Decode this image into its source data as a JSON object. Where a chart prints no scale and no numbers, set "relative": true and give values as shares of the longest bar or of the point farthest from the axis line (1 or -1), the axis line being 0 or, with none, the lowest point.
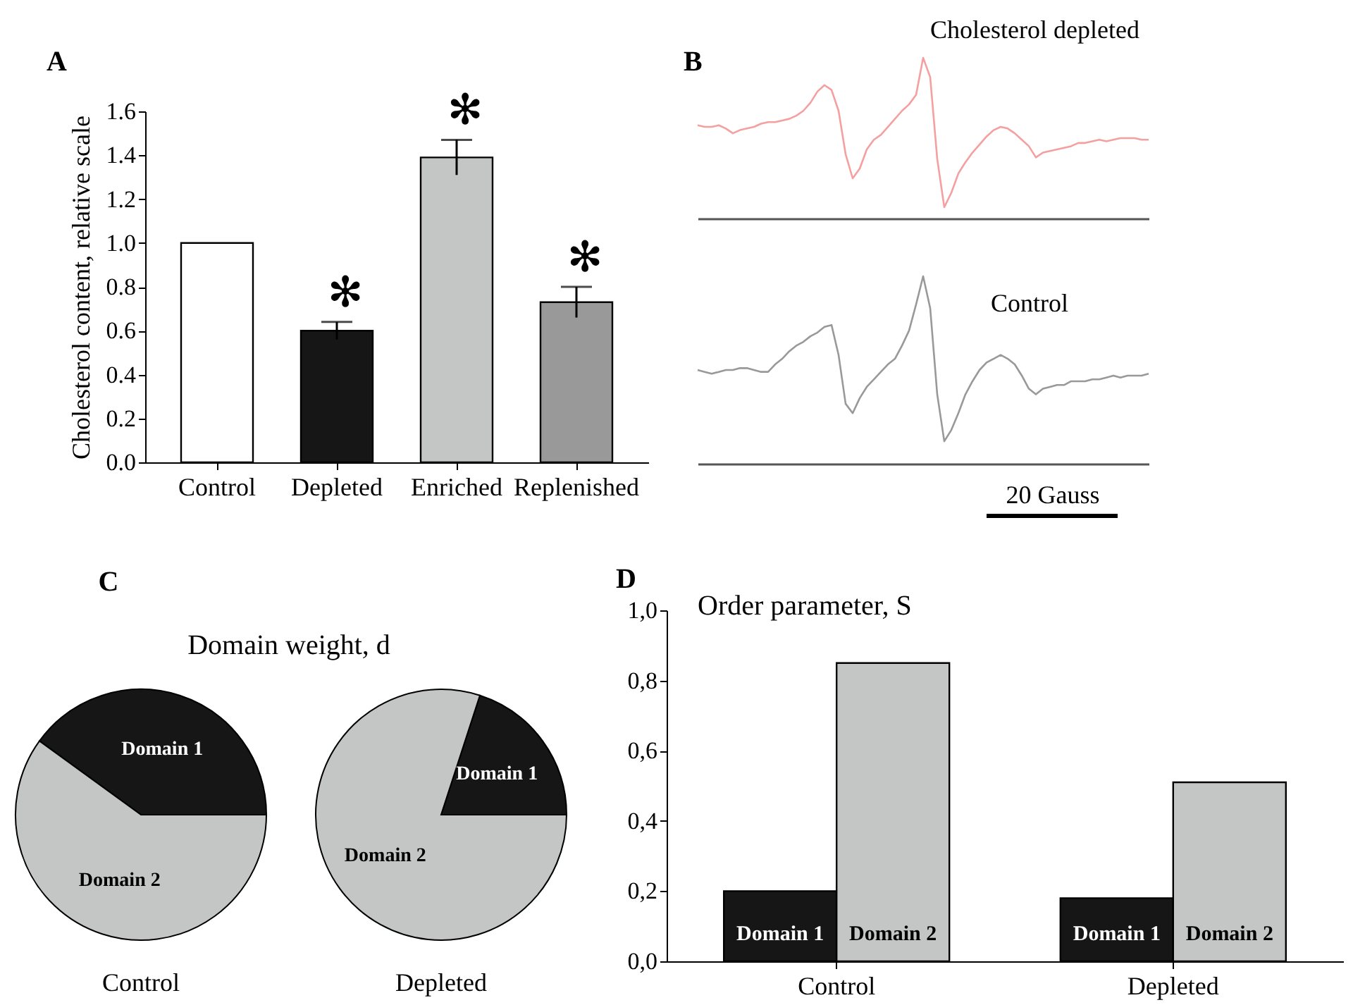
{
  "chart_data": [
    {
      "type": "bar",
      "title": "A",
      "ylabel": "Cholesterol content, relative scale",
      "categories": [
        "Control",
        "Depleted",
        "Enriched",
        "Replenished"
      ],
      "values": [
        1.0,
        0.6,
        1.39,
        0.73
      ],
      "colors": [
        "#ffffff",
        "#161616",
        "#c4c6c5",
        "#999999"
      ],
      "errors": [
        null,
        0.04,
        0.08,
        0.07
      ],
      "ylim": [
        0,
        1.6
      ],
      "yticks": [
        {
          "value": 0,
          "label": "0.0"
        },
        {
          "value": 0.2,
          "label": "0.2"
        },
        {
          "value": 0.4,
          "label": "0.4"
        },
        {
          "value": 0.6,
          "label": "0.6"
        },
        {
          "value": 0.8,
          "label": "0.8"
        },
        {
          "value": 1,
          "label": "1.0"
        },
        {
          "value": 1.2,
          "label": "1.2"
        },
        {
          "value": 1.4,
          "label": "1.4"
        },
        {
          "value": 1.6,
          "label": "1.6"
        }
      ],
      "annotations": [
        {
          "text": "✻",
          "x": "Depleted",
          "y": 0.6
        },
        {
          "text": "✻",
          "x": "Enriched",
          "y": 1.39
        },
        {
          "text": "✻",
          "x": "Replenished",
          "y": 0.73
        }
      ]
    },
    {
      "type": "line",
      "title": "B",
      "relative": true,
      "categories": [
        null,
        null,
        null,
        null,
        null,
        null,
        null,
        null,
        null,
        null,
        null,
        null,
        null,
        null,
        null,
        null,
        null,
        null,
        null,
        null,
        null,
        null,
        null,
        null,
        null,
        null,
        null,
        null,
        null,
        null,
        null,
        null,
        null,
        null,
        null,
        null,
        null,
        null,
        null,
        null,
        null,
        null,
        null,
        null,
        null,
        null,
        null,
        null,
        null,
        null,
        null,
        null,
        null,
        null,
        null,
        null,
        null,
        null,
        null,
        null,
        null,
        null,
        null,
        null,
        null
      ],
      "series": [
        {
          "name": "Cholesterol depleted",
          "color": "#f4a0a0",
          "values": [
            0.58,
            0.57,
            0.57,
            0.58,
            0.56,
            0.53,
            0.55,
            0.56,
            0.57,
            0.59,
            0.6,
            0.6,
            0.61,
            0.62,
            0.64,
            0.67,
            0.72,
            0.79,
            0.83,
            0.8,
            0.67,
            0.4,
            0.25,
            0.31,
            0.43,
            0.49,
            0.52,
            0.57,
            0.62,
            0.67,
            0.71,
            0.77,
            1,
            0.88,
            0.37,
            0.07,
            0.16,
            0.28,
            0.35,
            0.41,
            0.46,
            0.51,
            0.55,
            0.57,
            0.56,
            0.53,
            0.49,
            0.45,
            0.38,
            0.41,
            0.42,
            0.43,
            0.44,
            0.45,
            0.47,
            0.47,
            0.48,
            0.49,
            0.48,
            0.49,
            0.5,
            0.5,
            0.5,
            0.49,
            0.49
          ]
        }
      ]
    },
    {
      "type": "line",
      "relative": true,
      "annotations": [
        "20 Gauss"
      ],
      "categories": [
        null,
        null,
        null,
        null,
        null,
        null,
        null,
        null,
        null,
        null,
        null,
        null,
        null,
        null,
        null,
        null,
        null,
        null,
        null,
        null,
        null,
        null,
        null,
        null,
        null,
        null,
        null,
        null,
        null,
        null,
        null,
        null,
        null,
        null,
        null,
        null,
        null,
        null,
        null,
        null,
        null,
        null,
        null,
        null,
        null,
        null,
        null,
        null,
        null,
        null,
        null,
        null,
        null,
        null,
        null,
        null,
        null,
        null,
        null,
        null,
        null,
        null,
        null,
        null,
        null
      ],
      "series": [
        {
          "name": "Control",
          "color": "#999999",
          "values": [
            0.5,
            0.49,
            0.48,
            0.49,
            0.5,
            0.5,
            0.51,
            0.51,
            0.5,
            0.49,
            0.49,
            0.53,
            0.56,
            0.6,
            0.63,
            0.65,
            0.68,
            0.7,
            0.73,
            0.74,
            0.58,
            0.32,
            0.27,
            0.35,
            0.41,
            0.45,
            0.49,
            0.53,
            0.56,
            0.63,
            0.71,
            0.85,
            1,
            0.83,
            0.37,
            0.12,
            0.18,
            0.27,
            0.37,
            0.44,
            0.5,
            0.54,
            0.56,
            0.58,
            0.56,
            0.53,
            0.47,
            0.4,
            0.37,
            0.4,
            0.41,
            0.42,
            0.42,
            0.44,
            0.44,
            0.44,
            0.45,
            0.45,
            0.46,
            0.47,
            0.46,
            0.47,
            0.47,
            0.47,
            0.48
          ]
        }
      ]
    },
    {
      "type": "pie",
      "title": "C",
      "subtitle": "Domain weight, d",
      "xlabel": "Control",
      "categories": [
        "Domain 1",
        "Domain 2"
      ],
      "values": [
        40,
        60
      ],
      "colors": [
        "#161616",
        "#c4c6c5"
      ]
    },
    {
      "type": "pie",
      "xlabel": "Depleted",
      "categories": [
        "Domain 1",
        "Domain 2"
      ],
      "values": [
        20,
        80
      ],
      "colors": [
        "#161616",
        "#c4c6c5"
      ]
    },
    {
      "type": "bar",
      "title": "D",
      "subtitle": "Order parameter, S",
      "categories": [
        "Control",
        "Depleted"
      ],
      "series": [
        {
          "name": "Domain 1",
          "color": "#161616",
          "values": [
            0.2,
            0.18
          ]
        },
        {
          "name": "Domain 2",
          "color": "#c4c6c5",
          "values": [
            0.85,
            0.51
          ]
        }
      ],
      "ylim": [
        0,
        1.0
      ],
      "yticks": [
        {
          "value": 0,
          "label": "0,0"
        },
        {
          "value": 0.2,
          "label": "0,2"
        },
        {
          "value": 0.4,
          "label": "0,4"
        },
        {
          "value": 0.6,
          "label": "0,6"
        },
        {
          "value": 0.8,
          "label": "0,8"
        },
        {
          "value": 1,
          "label": "1,0"
        }
      ]
    }
  ]
}
